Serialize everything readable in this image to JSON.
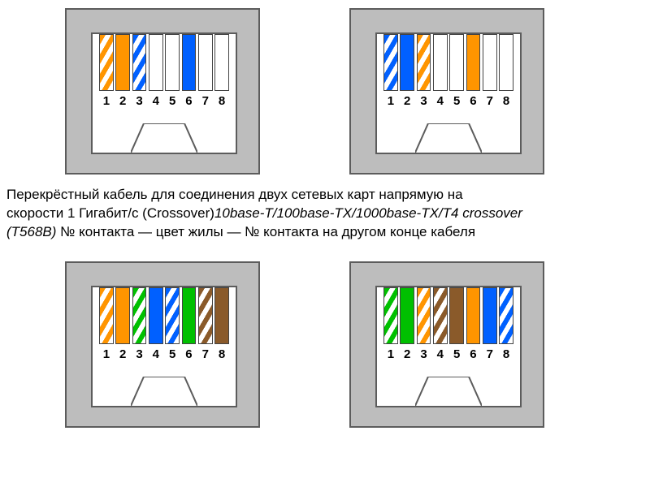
{
  "colors": {
    "connector_bg": "#bdbdbd",
    "connector_border": "#5c5c5c",
    "inner_bg": "#ffffff",
    "page_bg": "#ffffff",
    "orange": "#ff9500",
    "blue": "#0060ff",
    "green": "#00c000",
    "brown": "#8a5a2a",
    "white": "#ffffff",
    "label_color": "#000000"
  },
  "typography": {
    "caption_fontsize": 17,
    "label_fontsize": 15,
    "label_weight": "bold",
    "font_family": "Arial"
  },
  "pin_labels": [
    "1",
    "2",
    "3",
    "4",
    "5",
    "6",
    "7",
    "8"
  ],
  "connectors": {
    "top_left": {
      "wires": [
        {
          "type": "stripe",
          "stripe": "#ff9500",
          "name": "white-orange"
        },
        {
          "type": "solid",
          "color": "#ff9500",
          "name": "orange"
        },
        {
          "type": "stripe",
          "stripe": "#0060ff",
          "name": "white-blue"
        },
        {
          "type": "solid",
          "color": "#ffffff",
          "name": "white"
        },
        {
          "type": "solid",
          "color": "#ffffff",
          "name": "white"
        },
        {
          "type": "solid",
          "color": "#0060ff",
          "name": "blue"
        },
        {
          "type": "solid",
          "color": "#ffffff",
          "name": "white"
        },
        {
          "type": "solid",
          "color": "#ffffff",
          "name": "white"
        }
      ]
    },
    "top_right": {
      "wires": [
        {
          "type": "stripe",
          "stripe": "#0060ff",
          "name": "white-blue"
        },
        {
          "type": "solid",
          "color": "#0060ff",
          "name": "blue"
        },
        {
          "type": "stripe",
          "stripe": "#ff9500",
          "name": "white-orange"
        },
        {
          "type": "solid",
          "color": "#ffffff",
          "name": "white"
        },
        {
          "type": "solid",
          "color": "#ffffff",
          "name": "white"
        },
        {
          "type": "solid",
          "color": "#ff9500",
          "name": "orange"
        },
        {
          "type": "solid",
          "color": "#ffffff",
          "name": "white"
        },
        {
          "type": "solid",
          "color": "#ffffff",
          "name": "white"
        }
      ]
    },
    "bottom_left": {
      "wires": [
        {
          "type": "stripe",
          "stripe": "#ff9500",
          "name": "white-orange"
        },
        {
          "type": "solid",
          "color": "#ff9500",
          "name": "orange"
        },
        {
          "type": "stripe",
          "stripe": "#00c000",
          "name": "white-green"
        },
        {
          "type": "solid",
          "color": "#0060ff",
          "name": "blue"
        },
        {
          "type": "stripe",
          "stripe": "#0060ff",
          "name": "white-blue"
        },
        {
          "type": "solid",
          "color": "#00c000",
          "name": "green"
        },
        {
          "type": "stripe",
          "stripe": "#8a5a2a",
          "name": "white-brown"
        },
        {
          "type": "solid",
          "color": "#8a5a2a",
          "name": "brown"
        }
      ]
    },
    "bottom_right": {
      "wires": [
        {
          "type": "stripe",
          "stripe": "#00c000",
          "name": "white-green"
        },
        {
          "type": "solid",
          "color": "#00c000",
          "name": "green"
        },
        {
          "type": "stripe",
          "stripe": "#ff9500",
          "name": "white-orange"
        },
        {
          "type": "stripe",
          "stripe": "#8a5a2a",
          "name": "white-brown"
        },
        {
          "type": "solid",
          "color": "#8a5a2a",
          "name": "brown"
        },
        {
          "type": "solid",
          "color": "#ff9500",
          "name": "orange"
        },
        {
          "type": "solid",
          "color": "#0060ff",
          "name": "blue"
        },
        {
          "type": "stripe",
          "stripe": "#0060ff",
          "name": "white-blue"
        }
      ]
    }
  },
  "caption": {
    "line1": "Перекрёстный кабель для соединения двух сетевых карт напрямую на",
    "line2_a": "скорости 1 Гигабит/с (Crossover)",
    "line2_b": "10base-T/100base-TX/1000base-TX/T4 crossover",
    "line3_a": " (T568B)",
    "line3_b": " № контакта — цвет жилы — № контакта на другом конце кабеля"
  }
}
